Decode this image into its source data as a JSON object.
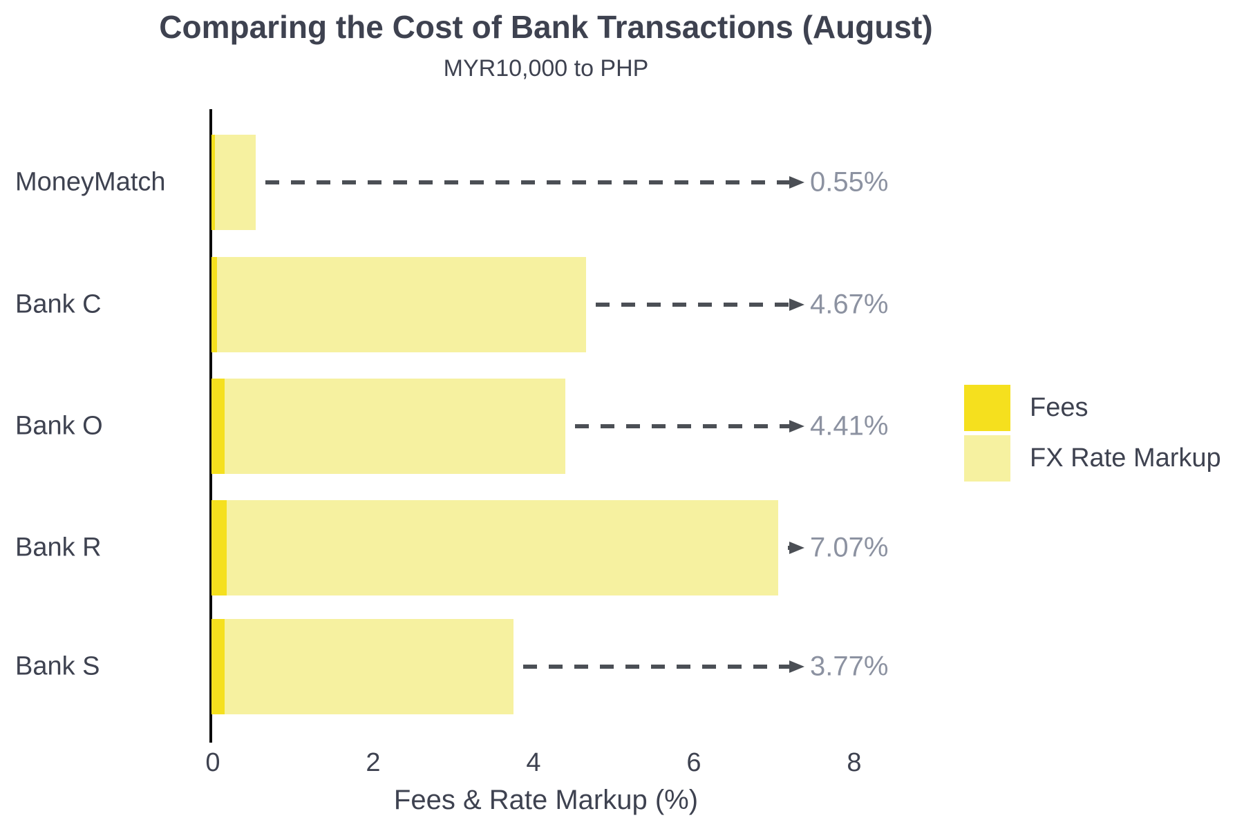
{
  "title": "Comparing the Cost of Bank Transactions (August)",
  "subtitle": "MYR10,000 to PHP",
  "chart_data": {
    "type": "bar",
    "orientation": "horizontal",
    "stacked": true,
    "title": "Comparing the Cost of Bank Transactions (August)",
    "subtitle": "MYR10,000 to PHP",
    "xlabel": "Fees & Rate Markup (%)",
    "ylabel": "",
    "categories": [
      "MoneyMatch",
      "Bank C",
      "Bank O",
      "Bank R",
      "Bank S"
    ],
    "series": [
      {
        "name": "Fees",
        "color": "#F5E01E",
        "values": [
          0.04,
          0.07,
          0.16,
          0.19,
          0.16
        ]
      },
      {
        "name": "FX Rate Markup",
        "color": "#F6F1A0",
        "values": [
          0.51,
          4.6,
          4.25,
          6.88,
          3.61
        ]
      }
    ],
    "totals": [
      0.55,
      4.67,
      4.41,
      7.07,
      3.77
    ],
    "total_labels": [
      "0.55%",
      "4.67%",
      "4.41%",
      "7.07%",
      "3.77%"
    ],
    "x_ticks": [
      "0",
      "2",
      "4",
      "6",
      "8"
    ],
    "xlim": [
      0,
      8
    ],
    "grid": false,
    "legend_position": "right",
    "annotation_style": "dashed-arrow-to-total-label"
  },
  "colors": {
    "background": "#FFFFFF",
    "fees": "#F5E01E",
    "fx_rate_markup": "#F6F1A0",
    "text_dark": "#3E4250",
    "value_label_gray": "#8C92A1",
    "arrow_gray": "#4B4F55",
    "axis_line": "#0B0B0B"
  }
}
